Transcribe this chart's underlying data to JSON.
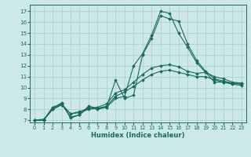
{
  "xlabel": "Humidex (Indice chaleur)",
  "bg_color": "#cce8e8",
  "grid_color": "#aacccc",
  "line_color": "#1a6b5a",
  "xlim": [
    -0.5,
    23.5
  ],
  "ylim": [
    6.8,
    17.6
  ],
  "yticks": [
    7,
    8,
    9,
    10,
    11,
    12,
    13,
    14,
    15,
    16,
    17
  ],
  "xticks": [
    0,
    1,
    2,
    3,
    4,
    5,
    6,
    7,
    8,
    9,
    10,
    11,
    12,
    13,
    14,
    15,
    16,
    17,
    18,
    19,
    20,
    21,
    22,
    23
  ],
  "series": [
    [
      7.0,
      7.0,
      8.2,
      8.5,
      7.3,
      7.5,
      8.3,
      8.1,
      8.2,
      10.7,
      9.0,
      9.3,
      13.0,
      14.5,
      16.6,
      16.3,
      16.1,
      14.0,
      12.5,
      11.5,
      10.8,
      10.6,
      10.4,
      10.3
    ],
    [
      7.0,
      7.0,
      8.1,
      8.6,
      7.2,
      7.5,
      8.2,
      8.0,
      8.2,
      9.0,
      9.2,
      12.0,
      13.1,
      14.8,
      17.0,
      16.8,
      15.0,
      13.7,
      12.3,
      11.4,
      10.5,
      10.5,
      10.4,
      10.4
    ],
    [
      7.0,
      7.0,
      8.0,
      8.4,
      7.6,
      7.8,
      8.1,
      8.2,
      8.5,
      9.5,
      9.8,
      10.5,
      11.2,
      11.8,
      12.0,
      12.1,
      11.9,
      11.5,
      11.3,
      11.4,
      11.0,
      10.8,
      10.5,
      10.4
    ],
    [
      7.0,
      7.1,
      8.0,
      8.5,
      7.6,
      7.7,
      8.0,
      8.1,
      8.3,
      9.2,
      9.6,
      10.1,
      10.7,
      11.2,
      11.5,
      11.6,
      11.4,
      11.2,
      11.0,
      11.0,
      10.7,
      10.5,
      10.3,
      10.2
    ]
  ]
}
